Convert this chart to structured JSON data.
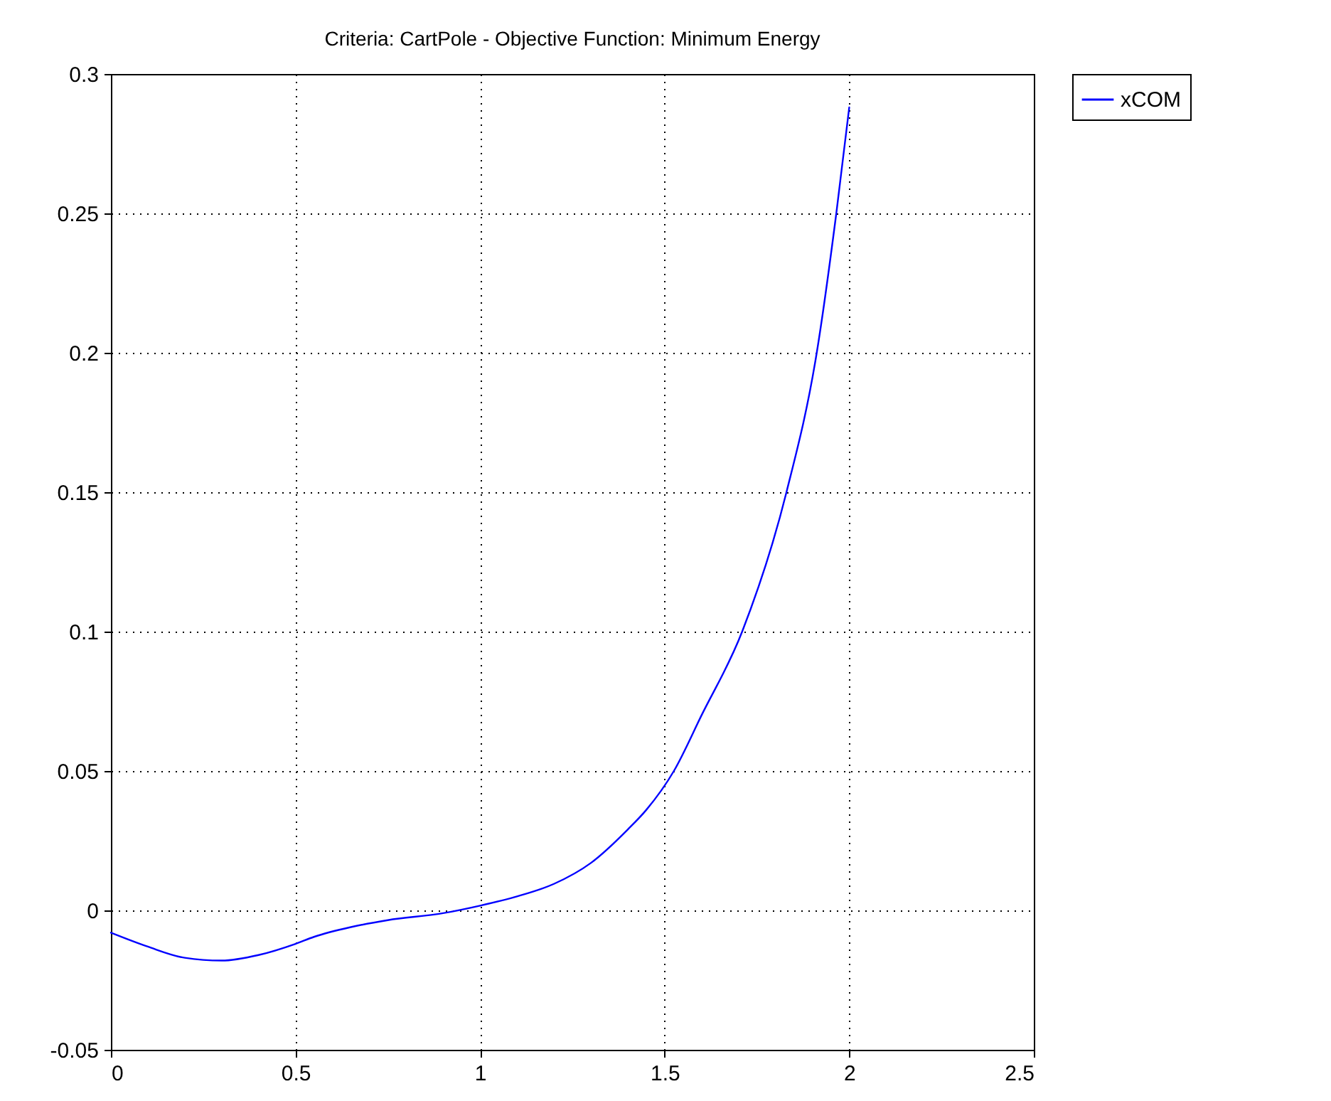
{
  "chart_data": {
    "type": "line",
    "title": "Criteria: CartPole - Objective Function: Minimum Energy",
    "x": [
      0,
      0.1,
      0.2,
      0.3,
      0.4,
      0.5,
      0.55,
      0.65,
      0.75,
      0.9,
      1.0,
      1.1,
      1.2,
      1.3,
      1.4,
      1.45,
      1.525,
      1.6,
      1.71,
      1.83,
      1.912,
      1.965,
      2.0
    ],
    "series": [
      {
        "name": "xCOM",
        "color": "#0000ff",
        "values": [
          -0.008,
          -0.013,
          -0.017,
          -0.018,
          -0.016,
          -0.012,
          -0.0095,
          -0.006,
          -0.0035,
          -0.001,
          0.0017,
          0.005,
          0.0095,
          0.017,
          0.029,
          0.036,
          0.05,
          0.07,
          0.1,
          0.15,
          0.2,
          0.25,
          0.288
        ]
      }
    ],
    "xlim": [
      0,
      2.5
    ],
    "xticks": [
      0,
      0.5,
      1,
      1.5,
      2,
      2.5
    ],
    "ylim": [
      -0.05,
      0.3
    ],
    "yticks": [
      -0.05,
      0,
      0.05,
      0.1,
      0.15,
      0.2,
      0.25,
      0.3
    ],
    "grid": true,
    "legend": "top right",
    "marker": "none",
    "line_style": "solid"
  }
}
